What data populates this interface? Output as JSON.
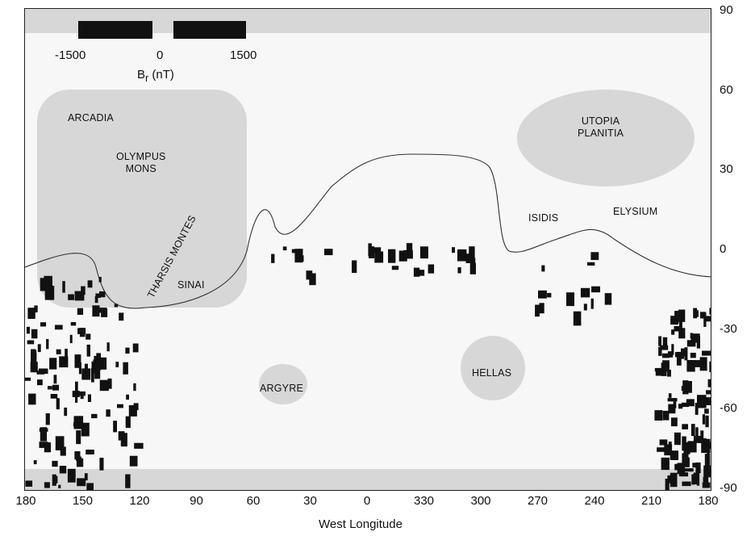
{
  "map": {
    "axis": {
      "latitude_ticks": [
        "90",
        "60",
        "30",
        "0",
        "-30",
        "-60",
        "-90"
      ],
      "longitude_ticks": [
        "180",
        "150",
        "120",
        "90",
        "60",
        "30",
        "0",
        "330",
        "300",
        "270",
        "240",
        "210",
        "180"
      ],
      "x_label": "West Longitude"
    },
    "colorbar": {
      "min_label": "-1500",
      "mid_label": "0",
      "max_label": "1500",
      "title": "Br (nT)",
      "colors": {
        "negative": "#111111",
        "zero": "#ffffff",
        "positive": "#111111"
      }
    },
    "regions": {
      "arcadia": "ARCADIA",
      "olympus_1": "OLYMPUS",
      "olympus_2": "MONS",
      "tharsis": "THARSIS MONTES",
      "sinai": "SINAI",
      "argyre": "ARGYRE",
      "hellas": "HELLAS",
      "utopia_1": "UTOPIA",
      "utopia_2": "PLANITIA",
      "isidis": "ISIDIS",
      "elysium": "ELYSIUM"
    },
    "colors": {
      "frame": "#222222",
      "boundary_line": "#333333",
      "shading": "#bdbdbd"
    }
  }
}
